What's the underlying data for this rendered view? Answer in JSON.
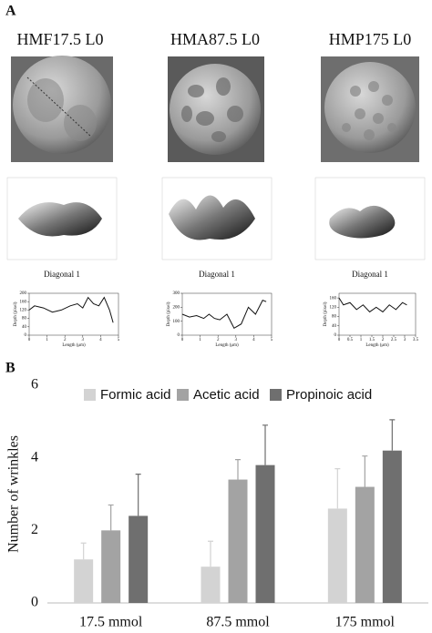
{
  "figure": {
    "panel_a_label": "A",
    "panel_b_label": "B",
    "columns": [
      {
        "title": "HMF17.5 L0",
        "caption": "Diagonal 1"
      },
      {
        "title": "HMA87.5 L0",
        "caption": "Diagonal 1"
      },
      {
        "title": "HMP175 L0",
        "caption": "Diagonal 1"
      }
    ]
  },
  "chart_data": [
    {
      "type": "line",
      "ylabel": "Depth (pixel)",
      "xlabel": "Length (μm)",
      "color": "#111111",
      "x": [
        0,
        0.3,
        0.8,
        1.3,
        1.8,
        2.3,
        2.7,
        3.0,
        3.3,
        3.6,
        3.9,
        4.2,
        4.5,
        4.7
      ],
      "values": [
        120,
        140,
        130,
        110,
        120,
        140,
        150,
        130,
        180,
        150,
        140,
        180,
        120,
        60
      ],
      "xlim": [
        0,
        5
      ],
      "ylim": [
        0,
        200
      ],
      "xticks": [
        0,
        1,
        2,
        3,
        4,
        5
      ],
      "yticks": [
        0,
        40,
        80,
        120,
        160,
        200
      ]
    },
    {
      "type": "line",
      "ylabel": "Depth (pixel)",
      "xlabel": "Length (μm)",
      "color": "#111111",
      "x": [
        0,
        0.4,
        0.8,
        1.2,
        1.5,
        1.8,
        2.1,
        2.5,
        2.9,
        3.3,
        3.7,
        4.1,
        4.5,
        4.7
      ],
      "values": [
        150,
        130,
        140,
        120,
        150,
        120,
        110,
        150,
        50,
        80,
        200,
        150,
        250,
        240
      ],
      "xlim": [
        0,
        5
      ],
      "ylim": [
        0,
        300
      ],
      "xticks": [
        0,
        1,
        2,
        3,
        4,
        5
      ],
      "yticks": [
        0,
        100,
        200,
        300
      ]
    },
    {
      "type": "line",
      "ylabel": "Depth (pixel)",
      "xlabel": "Length (μm)",
      "color": "#111111",
      "x": [
        0,
        0.2,
        0.5,
        0.8,
        1.1,
        1.4,
        1.7,
        2.0,
        2.3,
        2.6,
        2.9,
        3.1
      ],
      "values": [
        160,
        130,
        140,
        110,
        130,
        100,
        120,
        100,
        130,
        110,
        140,
        130
      ],
      "xlim": [
        0,
        3.5
      ],
      "ylim": [
        0,
        180
      ],
      "xticks": [
        0,
        0.5,
        1,
        1.5,
        2,
        2.5,
        3,
        3.5
      ],
      "yticks": [
        0,
        40,
        80,
        120,
        160
      ]
    },
    {
      "type": "bar",
      "ylabel": "Number of wrinkles",
      "categories": [
        "17.5 mmol",
        "87.5 mmol",
        "175 mmol"
      ],
      "series": [
        {
          "name": "Formic acid",
          "color": "#d3d3d3",
          "values": [
            1.2,
            1.0,
            2.6
          ],
          "errors": [
            0.45,
            0.7,
            1.1
          ]
        },
        {
          "name": "Acetic acid",
          "color": "#a3a3a3",
          "values": [
            2.0,
            3.4,
            3.2
          ],
          "errors": [
            0.7,
            0.55,
            0.85
          ]
        },
        {
          "name": "Propinoic acid",
          "color": "#6f6f6f",
          "values": [
            2.4,
            3.8,
            4.2
          ],
          "errors": [
            1.15,
            1.1,
            0.85
          ]
        }
      ],
      "ylim": [
        0,
        6
      ],
      "yticks": [
        0,
        2,
        4,
        6
      ],
      "grid": false,
      "legend": "top"
    }
  ]
}
